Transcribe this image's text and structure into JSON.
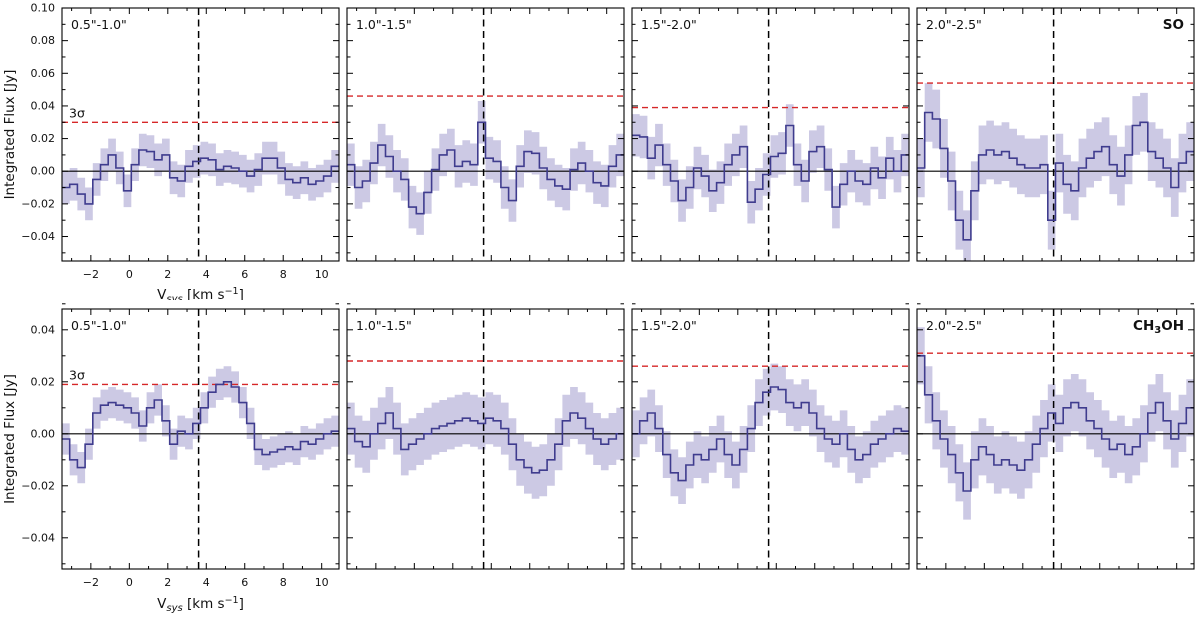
{
  "labels": {
    "ylabel": "Integrated Flux [Jy]",
    "sigma": "3σ",
    "xlabel": {
      "base": "V",
      "sub": "sys",
      "mid": " [km s",
      "sup": "−1",
      "end": "]"
    },
    "molecule_parts": [
      [
        {
          "t": "SO",
          "sub": false
        }
      ],
      [
        {
          "t": "CH",
          "sub": false
        },
        {
          "t": "3",
          "sub": true
        },
        {
          "t": "OH",
          "sub": false
        }
      ]
    ]
  },
  "colors": {
    "flux_line": "#3f3c8e",
    "error_band": "#8e88c4",
    "error_band_opacity": 0.45,
    "sigma_line": "#d62728",
    "vline": "#000000",
    "zero_line": "#000000",
    "axis": "#000000"
  },
  "chart_data": {
    "type": "line",
    "style": "step-histogram with shaded 1-sigma error band",
    "xlabel": "V_sys [km s^-1]",
    "ylabel": "Integrated Flux [Jy]",
    "x_start": -3.5,
    "x_step": 0.4,
    "xlim": [
      -3.5,
      10.9
    ],
    "xticks": [
      -2,
      0,
      2,
      4,
      6,
      8,
      10
    ],
    "vline_x": 3.6,
    "rows": [
      {
        "molecule": "SO",
        "ylim": [
          -0.055,
          0.1
        ],
        "yticks": [
          -0.04,
          -0.02,
          0.0,
          0.02,
          0.04,
          0.06,
          0.08,
          0.1
        ],
        "panels": [
          {
            "title": "0.5\"-1.0\"",
            "sigma_3": 0.03,
            "err": 0.01,
            "flux": [
              -0.01,
              -0.008,
              -0.014,
              -0.02,
              -0.005,
              0.004,
              0.01,
              0.002,
              -0.012,
              0.004,
              0.013,
              0.012,
              0.007,
              0.01,
              -0.004,
              -0.006,
              0.003,
              0.006,
              0.008,
              0.007,
              0.001,
              0.003,
              0.002,
              0.0,
              -0.003,
              0.001,
              0.008,
              0.008,
              0.002,
              -0.005,
              -0.007,
              -0.004,
              -0.008,
              -0.006,
              -0.003,
              0.003
            ]
          },
          {
            "title": "1.0\"-1.5\"",
            "sigma_3": 0.046,
            "err": 0.013,
            "flux": [
              0.004,
              -0.01,
              -0.006,
              0.005,
              0.016,
              0.009,
              0.0,
              -0.005,
              -0.022,
              -0.026,
              -0.013,
              0.001,
              0.01,
              0.013,
              0.003,
              0.006,
              0.004,
              0.03,
              0.008,
              0.006,
              -0.01,
              -0.018,
              0.003,
              0.012,
              0.011,
              0.002,
              -0.005,
              -0.009,
              -0.011,
              0.001,
              0.005,
              0.0,
              -0.007,
              -0.009,
              0.003,
              0.01
            ]
          },
          {
            "title": "1.5\"-2.0\"",
            "sigma_3": 0.039,
            "err": 0.013,
            "flux": [
              0.022,
              0.021,
              0.008,
              0.016,
              0.004,
              -0.006,
              -0.018,
              -0.01,
              0.002,
              -0.003,
              -0.012,
              -0.007,
              0.004,
              0.01,
              0.015,
              -0.019,
              -0.011,
              -0.002,
              0.009,
              0.011,
              0.028,
              0.004,
              -0.006,
              0.012,
              0.015,
              0.001,
              -0.022,
              -0.008,
              0.0,
              -0.006,
              -0.008,
              0.002,
              -0.004,
              0.008,
              0.0,
              0.01
            ]
          },
          {
            "title": "2.0\"-2.5\"",
            "sigma_3": 0.054,
            "err": 0.018,
            "flux": [
              0.002,
              0.036,
              0.032,
              0.014,
              -0.006,
              -0.03,
              -0.042,
              -0.012,
              0.01,
              0.013,
              0.01,
              0.012,
              0.008,
              0.004,
              0.002,
              0.002,
              0.004,
              -0.03,
              0.005,
              -0.008,
              -0.012,
              0.002,
              0.008,
              0.012,
              0.015,
              0.004,
              -0.003,
              0.01,
              0.028,
              0.03,
              0.012,
              0.008,
              0.002,
              -0.01,
              0.005,
              0.012
            ]
          }
        ]
      },
      {
        "molecule": "CH3OH",
        "ylim": [
          -0.052,
          0.048
        ],
        "yticks": [
          -0.04,
          -0.02,
          0.0,
          0.02,
          0.04
        ],
        "panels": [
          {
            "title": "0.5\"-1.0\"",
            "sigma_3": 0.019,
            "err": 0.006,
            "flux": [
              -0.002,
              -0.01,
              -0.013,
              -0.004,
              0.008,
              0.011,
              0.012,
              0.011,
              0.01,
              0.008,
              0.003,
              0.01,
              0.013,
              0.005,
              -0.004,
              0.001,
              0.0,
              0.004,
              0.01,
              0.016,
              0.019,
              0.02,
              0.018,
              0.012,
              0.004,
              -0.006,
              -0.008,
              -0.007,
              -0.006,
              -0.005,
              -0.006,
              -0.003,
              -0.004,
              -0.002,
              0.0,
              0.001
            ]
          },
          {
            "title": "1.0\"-1.5\"",
            "sigma_3": 0.028,
            "err": 0.01,
            "flux": [
              0.002,
              -0.003,
              -0.005,
              0.0,
              0.004,
              0.008,
              0.002,
              -0.006,
              -0.004,
              -0.002,
              0.0,
              0.002,
              0.003,
              0.004,
              0.005,
              0.006,
              0.005,
              0.004,
              0.006,
              0.005,
              0.002,
              -0.004,
              -0.01,
              -0.013,
              -0.015,
              -0.014,
              -0.01,
              -0.004,
              0.005,
              0.008,
              0.006,
              0.002,
              -0.002,
              -0.004,
              -0.002,
              0.0
            ]
          },
          {
            "title": "1.5\"-2.0\"",
            "sigma_3": 0.026,
            "err": 0.009,
            "flux": [
              0.0,
              0.005,
              0.008,
              0.002,
              -0.008,
              -0.015,
              -0.018,
              -0.012,
              -0.008,
              -0.01,
              -0.006,
              -0.002,
              -0.008,
              -0.012,
              -0.006,
              0.002,
              0.012,
              0.016,
              0.018,
              0.017,
              0.012,
              0.01,
              0.012,
              0.008,
              0.002,
              -0.002,
              -0.004,
              0.0,
              -0.006,
              -0.01,
              -0.008,
              -0.004,
              -0.002,
              0.0,
              0.002,
              0.001
            ]
          },
          {
            "title": "2.0\"-2.5\"",
            "sigma_3": 0.031,
            "err": 0.011,
            "flux": [
              0.03,
              0.015,
              0.005,
              -0.002,
              -0.008,
              -0.015,
              -0.022,
              -0.01,
              -0.005,
              -0.008,
              -0.012,
              -0.01,
              -0.012,
              -0.014,
              -0.01,
              -0.004,
              0.002,
              0.008,
              0.004,
              0.01,
              0.012,
              0.01,
              0.005,
              0.002,
              -0.002,
              -0.006,
              -0.004,
              -0.008,
              -0.005,
              0.0,
              0.008,
              0.012,
              0.005,
              -0.002,
              0.004,
              0.01
            ]
          }
        ]
      }
    ]
  }
}
